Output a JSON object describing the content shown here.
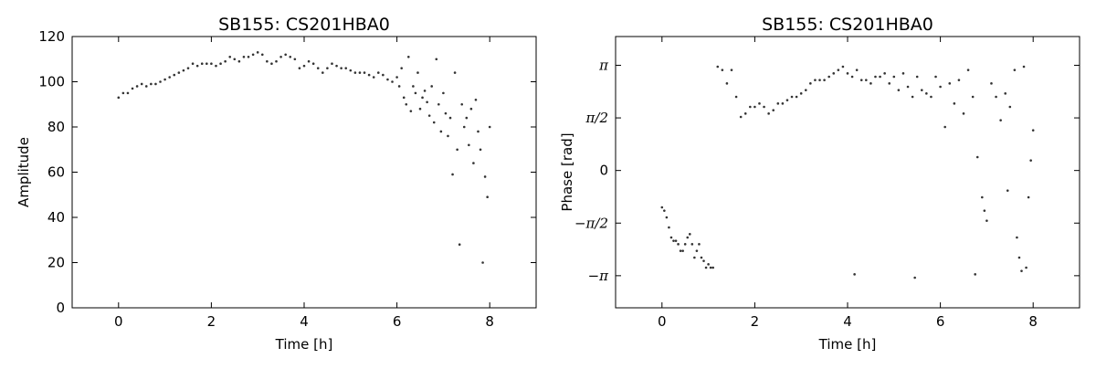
{
  "chart_data": [
    {
      "type": "scatter",
      "title": "SB155: CS201HBA0",
      "x_label": "Time [h]",
      "y_label": "Amplitude",
      "color": "#333333",
      "xlim": [
        -1,
        9
      ],
      "xticks": [
        0,
        2,
        4,
        6,
        8
      ],
      "ylim": [
        0,
        120
      ],
      "yticks": [
        0,
        20,
        40,
        60,
        80,
        100,
        120
      ],
      "x": [
        0,
        0.1,
        0.2,
        0.3,
        0.4,
        0.5,
        0.6,
        0.7,
        0.8,
        0.9,
        1.0,
        1.1,
        1.2,
        1.3,
        1.4,
        1.5,
        1.6,
        1.7,
        1.8,
        1.9,
        2.0,
        2.1,
        2.2,
        2.3,
        2.4,
        2.5,
        2.6,
        2.7,
        2.8,
        2.9,
        3.0,
        3.1,
        3.2,
        3.3,
        3.4,
        3.5,
        3.6,
        3.7,
        3.8,
        3.9,
        4.0,
        4.1,
        4.2,
        4.3,
        4.4,
        4.5,
        4.6,
        4.7,
        4.8,
        4.9,
        5.0,
        5.1,
        5.2,
        5.3,
        5.4,
        5.5,
        5.6,
        5.7,
        5.8,
        5.9,
        6.0,
        6.05,
        6.1,
        6.15,
        6.2,
        6.25,
        6.3,
        6.35,
        6.4,
        6.45,
        6.5,
        6.55,
        6.6,
        6.65,
        6.7,
        6.75,
        6.8,
        6.85,
        6.9,
        6.95,
        7.0,
        7.05,
        7.1,
        7.15,
        7.2,
        7.25,
        7.3,
        7.35,
        7.4,
        7.45,
        7.5,
        7.55,
        7.6,
        7.65,
        7.7,
        7.75,
        7.8,
        7.85,
        7.9,
        7.95,
        8.0
      ],
      "values": [
        93,
        95,
        95,
        97,
        98,
        99,
        98,
        99,
        99,
        100,
        101,
        102,
        103,
        104,
        105,
        106,
        108,
        107,
        108,
        108,
        108,
        107,
        108,
        109,
        111,
        110,
        109,
        111,
        111,
        112,
        113,
        112,
        109,
        108,
        109,
        111,
        112,
        111,
        110,
        106,
        107,
        109,
        108,
        106,
        104,
        106,
        108,
        107,
        106,
        106,
        105,
        104,
        104,
        104,
        103,
        102,
        104,
        103,
        101,
        100,
        102,
        98,
        106,
        93,
        90,
        111,
        87,
        98,
        95,
        104,
        88,
        93,
        96,
        91,
        85,
        98,
        82,
        110,
        90,
        78,
        95,
        86,
        76,
        84,
        59,
        104,
        70,
        28,
        90,
        80,
        84,
        72,
        88,
        64,
        92,
        78,
        70,
        20,
        58,
        49,
        80
      ]
    },
    {
      "type": "scatter",
      "title": "SB155: CS201HBA0",
      "x_label": "Time [h]",
      "y_label": "Phase [rad]",
      "color": "#333333",
      "xlim": [
        -1,
        9
      ],
      "xticks": [
        0,
        2,
        4,
        6,
        8
      ],
      "ylim": [
        -4.1,
        4.0
      ],
      "yticks": [
        {
          "value": -3.14159,
          "label": "−π"
        },
        {
          "value": -1.5708,
          "label": "−π/2"
        },
        0,
        {
          "value": 1.5708,
          "label": "π/2"
        },
        {
          "value": 3.14159,
          "label": "π"
        }
      ],
      "x": [
        0,
        0.05,
        0.1,
        0.15,
        0.2,
        0.25,
        0.3,
        0.35,
        0.4,
        0.45,
        0.5,
        0.55,
        0.6,
        0.65,
        0.7,
        0.75,
        0.8,
        0.85,
        0.9,
        0.95,
        1.0,
        1.05,
        1.1,
        1.2,
        1.3,
        1.4,
        1.5,
        1.6,
        1.7,
        1.8,
        1.9,
        2.0,
        2.1,
        2.2,
        2.3,
        2.4,
        2.5,
        2.6,
        2.7,
        2.8,
        2.9,
        3.0,
        3.1,
        3.2,
        3.3,
        3.4,
        3.5,
        3.6,
        3.7,
        3.8,
        3.9,
        4.0,
        4.1,
        4.15,
        4.2,
        4.3,
        4.4,
        4.5,
        4.6,
        4.7,
        4.8,
        4.9,
        5.0,
        5.1,
        5.2,
        5.3,
        5.4,
        5.45,
        5.5,
        5.6,
        5.7,
        5.8,
        5.9,
        6.0,
        6.1,
        6.2,
        6.3,
        6.4,
        6.5,
        6.6,
        6.7,
        6.75,
        6.8,
        6.9,
        6.95,
        7.0,
        7.1,
        7.2,
        7.3,
        7.4,
        7.45,
        7.5,
        7.6,
        7.65,
        7.7,
        7.75,
        7.8,
        7.85,
        7.9,
        7.95,
        8.0
      ],
      "values": [
        -1.1,
        -1.2,
        -1.4,
        -1.7,
        -2.0,
        -2.1,
        -2.1,
        -2.2,
        -2.4,
        -2.4,
        -2.2,
        -2.0,
        -1.9,
        -2.2,
        -2.6,
        -2.4,
        -2.2,
        -2.6,
        -2.7,
        -2.9,
        -2.8,
        -2.9,
        -2.9,
        3.1,
        3.0,
        2.6,
        3.0,
        2.2,
        1.6,
        1.7,
        1.9,
        1.9,
        2.0,
        1.9,
        1.7,
        1.8,
        2.0,
        2.0,
        2.1,
        2.2,
        2.2,
        2.3,
        2.4,
        2.6,
        2.7,
        2.7,
        2.7,
        2.8,
        2.9,
        3.0,
        3.1,
        2.9,
        2.8,
        -3.1,
        3.0,
        2.7,
        2.7,
        2.6,
        2.8,
        2.8,
        2.9,
        2.6,
        2.8,
        2.4,
        2.9,
        2.5,
        2.2,
        -3.2,
        2.8,
        2.4,
        2.3,
        2.2,
        2.8,
        2.5,
        1.3,
        2.6,
        2.0,
        2.7,
        1.7,
        3.0,
        2.2,
        -3.1,
        0.4,
        -0.8,
        -1.2,
        -1.5,
        2.6,
        2.2,
        1.5,
        2.3,
        -0.6,
        1.9,
        3.0,
        -2.0,
        -2.6,
        -3.0,
        3.1,
        -2.9,
        -0.8,
        0.3,
        1.2
      ]
    }
  ]
}
